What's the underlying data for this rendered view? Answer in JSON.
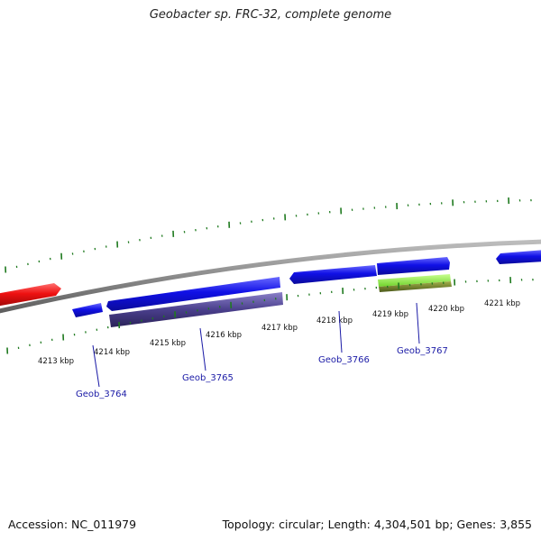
{
  "title": "Geobacter sp. FRC-32, complete genome",
  "footer": {
    "accession": "Accession: NC_011979",
    "summary": "Topology: circular; Length: 4,304,501 bp; Genes: 3,855"
  },
  "colors": {
    "backbone": "#8a8a8a",
    "tick_green": "#1f7a1f",
    "cds_blue": "#1010e6",
    "cds_red": "#ee1111",
    "gene_purple": "#4a3f8c",
    "gene_green": "#7ee83a",
    "gene_olive": "#6b7a2a",
    "label_blue": "#1a1aa6"
  },
  "kbp_labels": [
    "4213 kbp",
    "4214 kbp",
    "4215 kbp",
    "4216 kbp",
    "4217 kbp",
    "4218 kbp",
    "4219 kbp",
    "4220 kbp",
    "4221 kbp"
  ],
  "gene_labels": [
    "Geob_3764",
    "Geob_3765",
    "Geob_3766",
    "Geob_3767"
  ]
}
